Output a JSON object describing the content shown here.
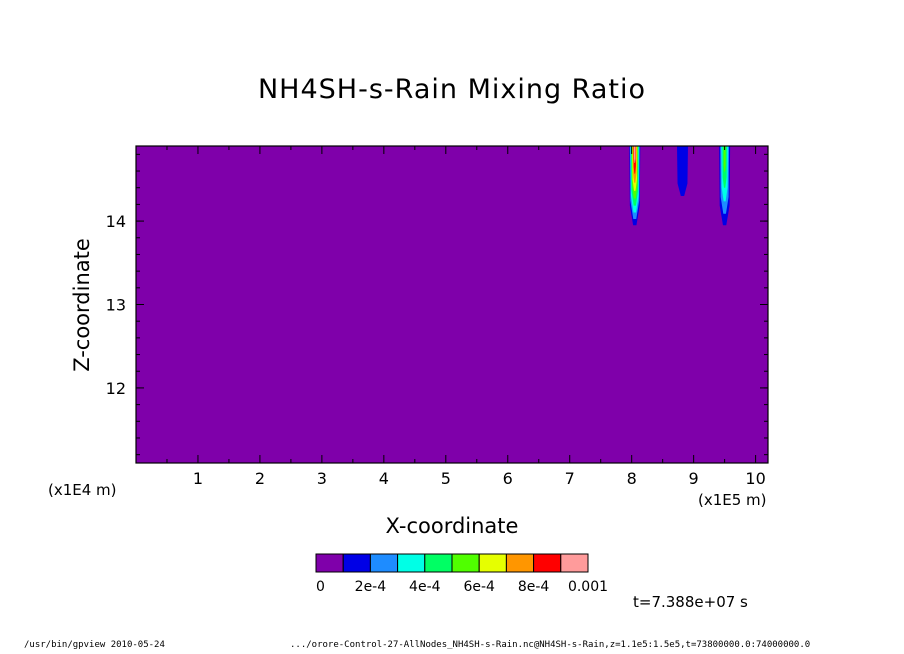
{
  "chart_data": {
    "type": "heatmap",
    "title": "NH4SH-s-Rain Mixing Ratio",
    "xlabel": "X-coordinate",
    "ylabel": "Z-coordinate",
    "x_unit_left": "(x1E4 m)",
    "x_unit_right": "(x1E5 m)",
    "xlim": [
      0,
      10.2
    ],
    "ylim": [
      11.1,
      14.9
    ],
    "x_ticks": [
      "1",
      "2",
      "3",
      "4",
      "5",
      "6",
      "7",
      "8",
      "9",
      "10"
    ],
    "y_ticks": [
      "12",
      "13",
      "14"
    ],
    "background_value": 0,
    "colorbar": {
      "colors": [
        "#7f00aa",
        "#0000e6",
        "#1e8cff",
        "#00ffe6",
        "#00ff64",
        "#50ff00",
        "#e6ff00",
        "#ff9600",
        "#ff0000",
        "#ff9b9b"
      ],
      "labels": [
        "0",
        "2e-4",
        "4e-4",
        "6e-4",
        "8e-4",
        "0.001"
      ]
    },
    "features": [
      {
        "name": "plume-8",
        "x": 8.05,
        "z_bottom": 13.95,
        "z_top": 14.9,
        "peak_value": 0.0009
      },
      {
        "name": "plume-8.8",
        "x": 8.82,
        "z_bottom": 14.3,
        "z_top": 14.9,
        "peak_value": 0.0001
      },
      {
        "name": "plume-9.5",
        "x": 9.5,
        "z_bottom": 13.95,
        "z_top": 14.9,
        "peak_value": 0.0005
      }
    ]
  },
  "annotations": {
    "time": "t=7.388e+07 s",
    "footer_left": "/usr/bin/gpview  2010-05-24",
    "footer_right": ".../orore-Control-27-AllNodes_NH4SH-s-Rain.nc@NH4SH-s-Rain,z=1.1e5:1.5e5,t=73800000.0:74000000.0"
  }
}
